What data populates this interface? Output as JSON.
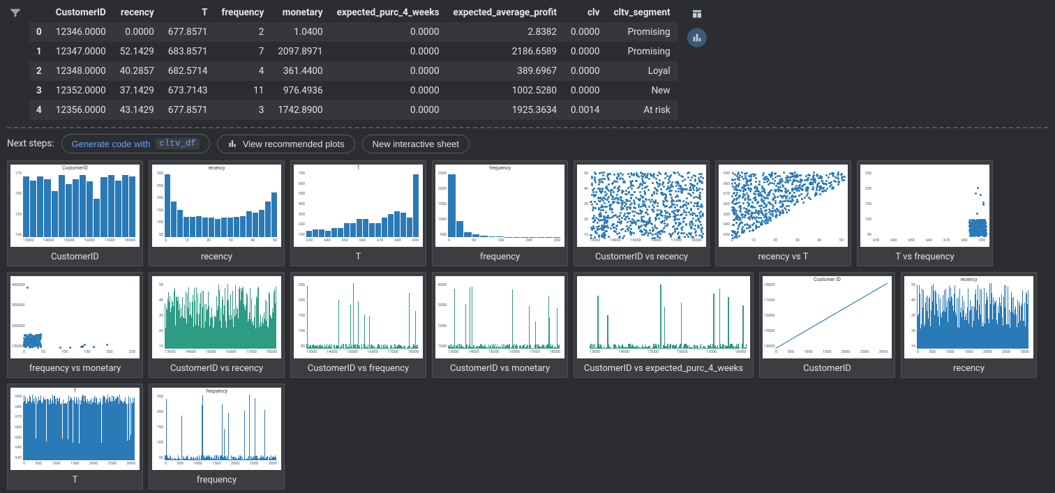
{
  "table": {
    "columns": [
      "",
      "CustomerID",
      "recency",
      "T",
      "frequency",
      "monetary",
      "expected_purc_4_weeks",
      "expected_average_profit",
      "clv",
      "cltv_segment"
    ],
    "rows": [
      [
        "0",
        "12346.0000",
        "0.0000",
        "677.8571",
        "2",
        "1.0400",
        "0.0000",
        "2.8382",
        "0.0000",
        "Promising"
      ],
      [
        "1",
        "12347.0000",
        "52.1429",
        "683.8571",
        "7",
        "2097.8971",
        "0.0000",
        "2186.6589",
        "0.0000",
        "Promising"
      ],
      [
        "2",
        "12348.0000",
        "40.2857",
        "682.5714",
        "4",
        "361.4400",
        "0.0000",
        "389.6967",
        "0.0000",
        "Loyal"
      ],
      [
        "3",
        "12352.0000",
        "37.1429",
        "673.7143",
        "11",
        "976.4936",
        "0.0000",
        "1002.5280",
        "0.0000",
        "New"
      ],
      [
        "4",
        "12356.0000",
        "43.1429",
        "677.8571",
        "3",
        "1742.8900",
        "0.0000",
        "1925.3634",
        "0.0014",
        "At risk"
      ]
    ],
    "row_odd_bg": "#35373b",
    "row_even_bg": "#2b2d30"
  },
  "view_buttons": {
    "table_view": "table-view-icon",
    "chart_view": "chart-view-icon",
    "active": "chart"
  },
  "next_steps": {
    "label": "Next steps:",
    "generate_prefix": "Generate code with",
    "generate_var": "cltv_df",
    "recommended": "View recommended plots",
    "new_sheet": "New interactive sheet"
  },
  "plots": [
    {
      "label": "CustomerID",
      "type": "histogram",
      "title": "CustomerID",
      "color": "#2a7ab8",
      "heights": [
        0.95,
        0.88,
        0.95,
        0.9,
        0.72,
        0.97,
        0.83,
        0.9,
        0.97,
        0.87,
        0.6,
        0.93,
        0.97,
        0.88,
        0.97,
        0.95
      ],
      "yticks": [
        "175",
        "150",
        "125",
        "100"
      ],
      "xticks": [
        "13000",
        "14000",
        "15000",
        "16000",
        "17000",
        "18000"
      ]
    },
    {
      "label": "recency",
      "type": "histogram",
      "title": "recency",
      "color": "#2a7ab8",
      "heights": [
        0.98,
        0.55,
        0.42,
        0.32,
        0.32,
        0.33,
        0.3,
        0.3,
        0.28,
        0.3,
        0.3,
        0.32,
        0.33,
        0.4,
        0.38,
        0.42,
        0.55,
        0.7
      ],
      "yticks": [
        "300",
        "250",
        "200",
        "150",
        "100",
        "50"
      ],
      "xticks": [
        "0",
        "10",
        "20",
        "30",
        "40",
        "50"
      ]
    },
    {
      "label": "T",
      "type": "histogram",
      "title": "T",
      "color": "#2a7ab8",
      "heights": [
        0.1,
        0.12,
        0.12,
        0.1,
        0.14,
        0.14,
        0.22,
        0.22,
        0.28,
        0.28,
        0.22,
        0.22,
        0.3,
        0.36,
        0.4,
        0.38,
        0.3,
        0.98
      ],
      "yticks": [
        "700",
        "600",
        "500",
        "400",
        "300",
        "200",
        "100"
      ],
      "xticks": [
        "630",
        "640",
        "650",
        "660",
        "670",
        "680",
        "690"
      ]
    },
    {
      "label": "frequency",
      "type": "histogram",
      "title": "frequency",
      "color": "#2a7ab8",
      "heights": [
        0.98,
        0.25,
        0.08,
        0.04,
        0.02,
        0.01,
        0.01,
        0.005,
        0.005,
        0.005,
        0.005,
        0.005,
        0.005,
        0.005
      ],
      "yticks": [
        "2500",
        "2000",
        "1500",
        "1000",
        "500"
      ],
      "xticks": [
        "0",
        "50",
        "100",
        "200",
        "250"
      ]
    },
    {
      "label": "CustomerID vs recency",
      "type": "scatter_dense",
      "title": "",
      "color": "#2a7ab8",
      "yticks": [
        "50",
        "40",
        "30",
        "20",
        "10"
      ],
      "xticks": [
        "13000",
        "14000",
        "15000",
        "16000",
        "17000",
        "18000"
      ]
    },
    {
      "label": "recency vs T",
      "type": "scatter_triangle",
      "title": "",
      "color": "#2a7ab8",
      "yticks": [
        "690",
        "680",
        "670",
        "660",
        "650",
        "640",
        "630"
      ],
      "xticks": [
        "0",
        "10",
        "20",
        "30",
        "40",
        "50"
      ]
    },
    {
      "label": "T vs frequency",
      "type": "scatter_corner",
      "title": "",
      "color": "#2a7ab8",
      "yticks": [
        "250",
        "200",
        "150",
        "100",
        "50"
      ],
      "xticks": [
        "630",
        "640",
        "650",
        "660",
        "670",
        "680",
        "690"
      ]
    },
    {
      "label": "frequency vs monetary",
      "type": "scatter_lshape",
      "title": "",
      "color": "#2a7ab8",
      "yticks": [
        "400000",
        "300000",
        "200000",
        "100000"
      ],
      "xticks": [
        "0",
        "50",
        "100",
        "150",
        "200",
        "250"
      ]
    },
    {
      "label": "CustomerID vs recency",
      "type": "vlines_dense",
      "color": "#2e9b84",
      "variant": "green",
      "yticks": [
        "50",
        "40",
        "30",
        "20",
        "10"
      ],
      "xticks": [
        "13000",
        "14000",
        "15000",
        "16000",
        "17000",
        "18000"
      ]
    },
    {
      "label": "CustomerID vs frequency",
      "type": "vlines_sparse",
      "color": "#2e9b84",
      "variant": "green",
      "yticks": [
        "250",
        "200",
        "150",
        "100",
        "50"
      ],
      "xticks": [
        "13000",
        "14000",
        "15000",
        "16000",
        "17000",
        "18000"
      ]
    },
    {
      "label": "CustomerID vs monetary",
      "type": "vlines_sparse",
      "color": "#2e9b84",
      "variant": "green",
      "yticks": [
        "4000",
        "3000",
        "2000",
        "1000"
      ],
      "xticks": [
        "13000",
        "14000",
        "15000",
        "16000",
        "17000",
        "18000"
      ]
    },
    {
      "label": "CustomerID vs expected_purc_4_weeks",
      "type": "vlines_sparse",
      "color": "#2e9b84",
      "variant": "green",
      "wide": true,
      "yticks": [
        "",
        "",
        "",
        ""
      ],
      "xticks": [
        "13000",
        "14000",
        "15000",
        "16000",
        "17000",
        "18000"
      ]
    },
    {
      "label": "CustomerID",
      "type": "diagonal",
      "title": "Customer ID",
      "color": "#2a7ab8",
      "yticks": [
        "18000",
        "17000",
        "16000",
        "15000",
        "14000"
      ],
      "xticks": [
        "0",
        "500",
        "1000",
        "1500",
        "2000",
        "2500",
        "3000"
      ]
    },
    {
      "label": "recency",
      "type": "vlines_dense",
      "title": "recency",
      "color": "#2a7ab8",
      "variant": "blue",
      "yticks": [
        "50",
        "40",
        "30",
        "20",
        "10"
      ],
      "xticks": [
        "0",
        "500",
        "1000",
        "1500",
        "2000",
        "2500",
        "3000"
      ]
    },
    {
      "label": "T",
      "type": "vlines_dense_high",
      "title": "T",
      "color": "#2a7ab8",
      "variant": "blue",
      "yticks": [
        "690",
        "680",
        "670",
        "660",
        "650",
        "640",
        "630"
      ],
      "xticks": [
        "0",
        "500",
        "1000",
        "1500",
        "2000",
        "2500",
        "3000"
      ]
    },
    {
      "label": "frequency",
      "type": "vlines_sparse",
      "title": "frequency",
      "color": "#2a7ab8",
      "variant": "blue",
      "yticks": [
        "250",
        "200",
        "150",
        "100",
        "50"
      ],
      "xticks": [
        "0",
        "500",
        "1000",
        "1500",
        "2000",
        "2500",
        "3000"
      ]
    }
  ],
  "colors": {
    "bg": "#2b2d30",
    "panel": "#3b3d41",
    "border": "#4e5157",
    "text": "#e4e4e4",
    "accent_blue": "#6ea0ff",
    "chart_blue": "#2a7ab8",
    "chart_green": "#2e9b84"
  }
}
